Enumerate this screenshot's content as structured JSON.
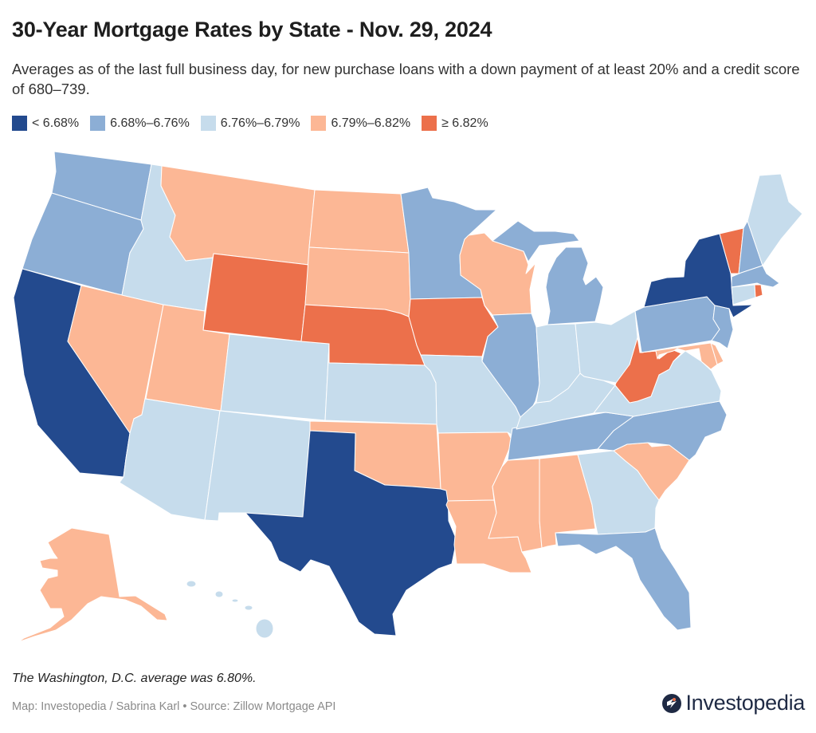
{
  "header": {
    "title": "30-Year Mortgage Rates by State - Nov. 29, 2024",
    "subtitle": "Averages as of the last full business day, for new purchase loans with a down payment of at least 20% and a credit score of 680–739."
  },
  "legend": [
    {
      "label": "< 6.68%",
      "color": "#234a8e"
    },
    {
      "label": "6.68%–6.76%",
      "color": "#8caed5"
    },
    {
      "label": "6.76%–6.79%",
      "color": "#c6dcec"
    },
    {
      "label": "6.79%–6.82%",
      "color": "#fcb795"
    },
    {
      "label": "≥ 6.82%",
      "color": "#ec704b"
    }
  ],
  "map_data": {
    "type": "choropleth",
    "state_bins": {
      "CA": 0,
      "TX": 0,
      "NY": 0,
      "WA": 1,
      "OR": 1,
      "MN": 1,
      "MI": 1,
      "IL": 1,
      "PA": 1,
      "NJ": 1,
      "NH": 1,
      "MA": 1,
      "TN": 1,
      "NC": 1,
      "FL": 1,
      "ID": 2,
      "AZ": 2,
      "NM": 2,
      "CO": 2,
      "KS": 2,
      "MO": 2,
      "IN": 2,
      "OH": 2,
      "KY": 2,
      "VA": 2,
      "GA": 2,
      "ME": 2,
      "CT": 2,
      "HI": 2,
      "MT": 3,
      "ND": 3,
      "SD": 3,
      "NV": 3,
      "UT": 3,
      "OK": 3,
      "AR": 3,
      "LA": 3,
      "MS": 3,
      "AL": 3,
      "SC": 3,
      "WI": 3,
      "MD": 3,
      "DE": 3,
      "AK": 3,
      "WY": 4,
      "NE": 4,
      "IA": 4,
      "WV": 4,
      "VT": 4,
      "RI": 4
    }
  },
  "footer": {
    "note": "The Washington, D.C. average was 6.80%.",
    "credit": "Map: Investopedia / Sabrina Karl • Source: Zillow Mortgage API",
    "logo": "Investopedia"
  }
}
